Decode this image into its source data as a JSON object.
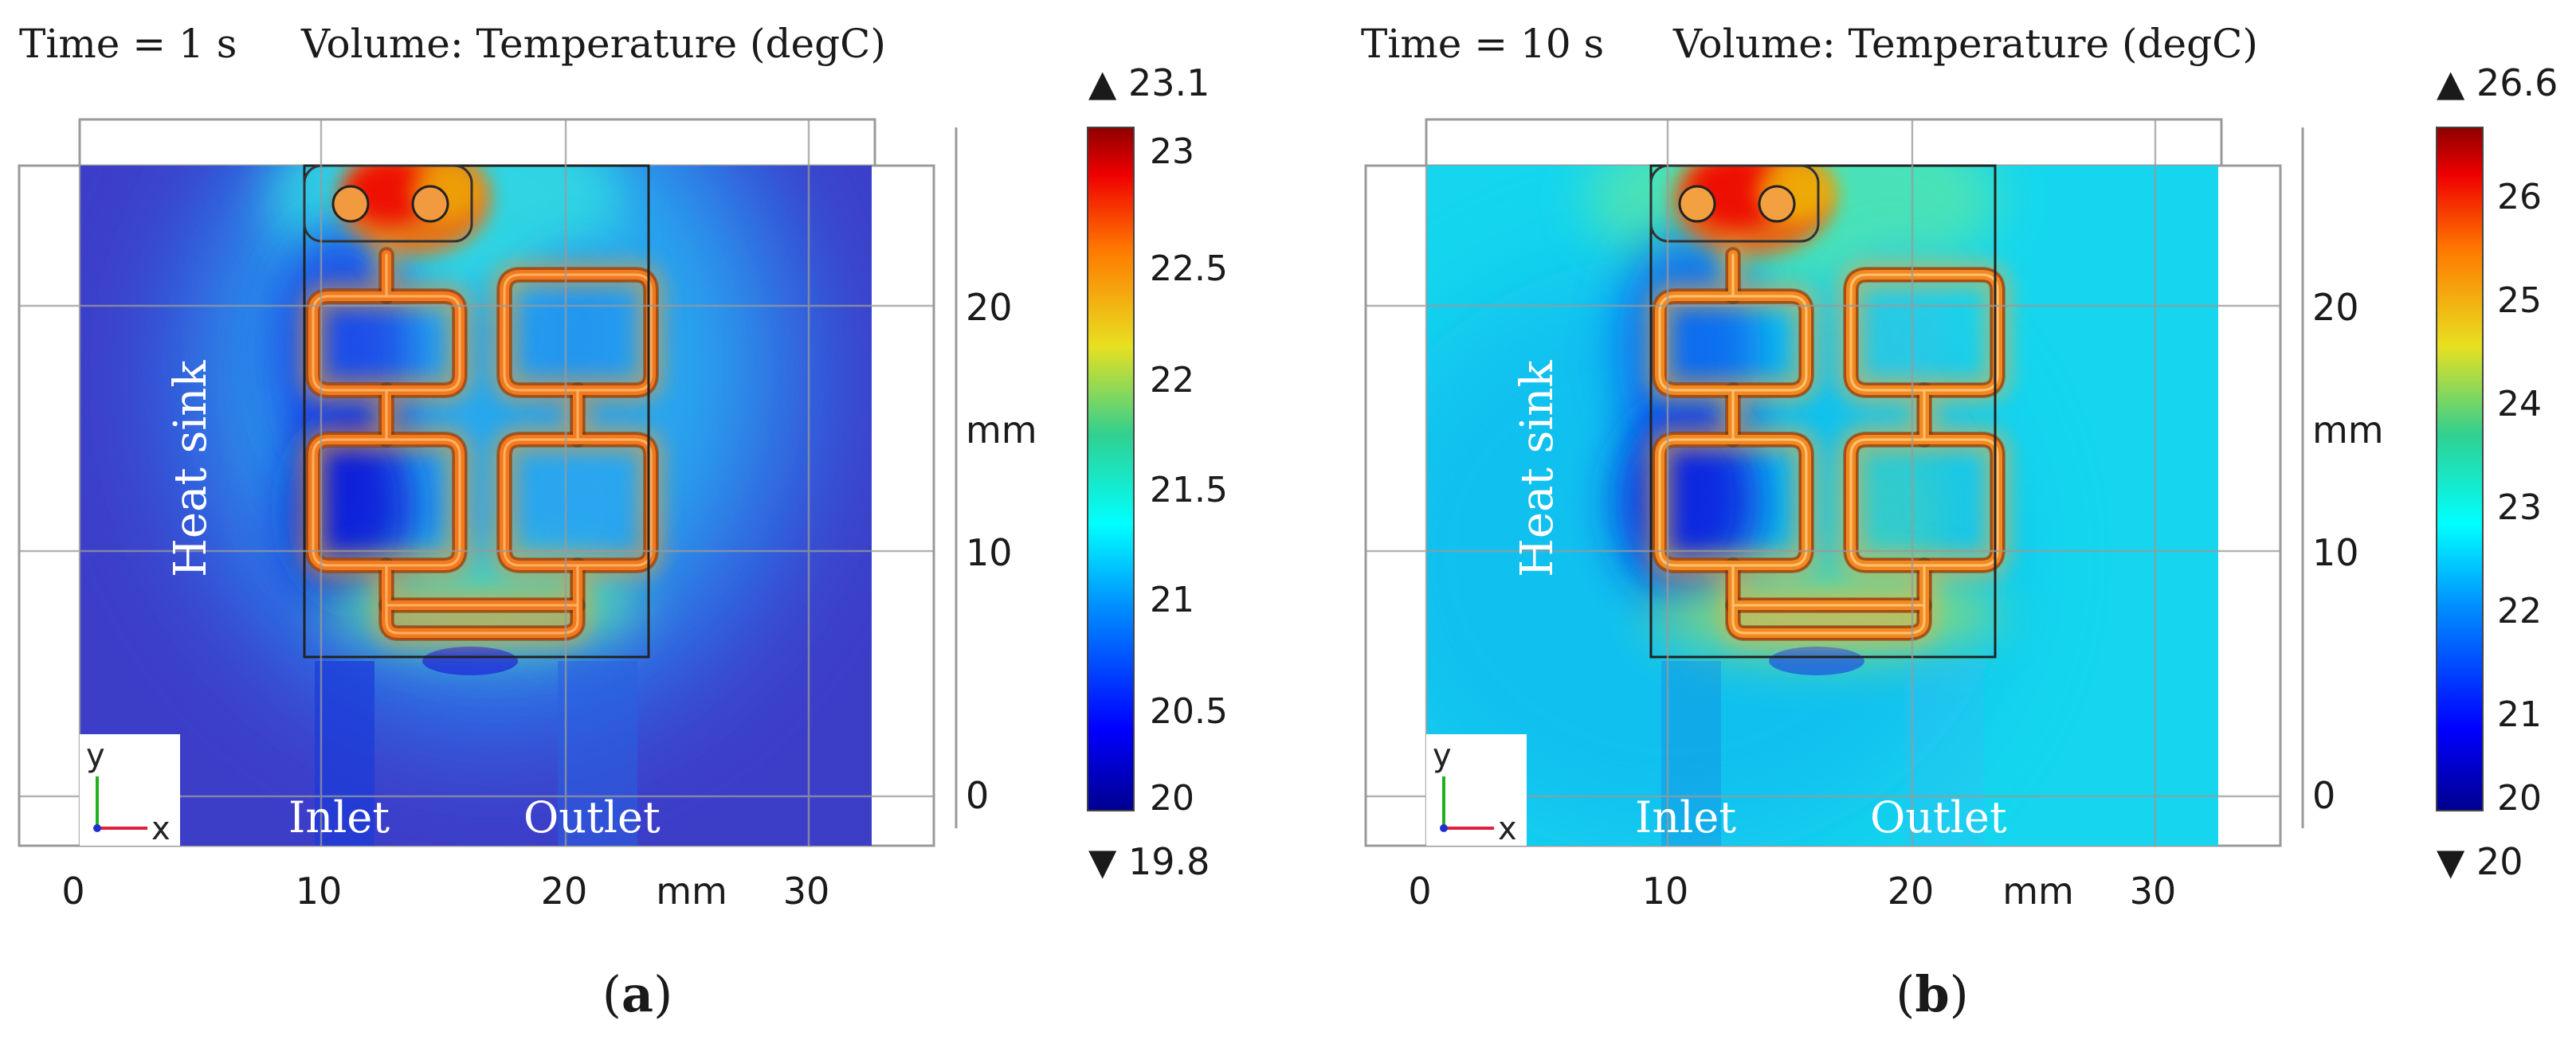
{
  "panels": [
    {
      "id": "a",
      "header_time": "Time = 1 s",
      "header_volume": "Volume: Temperature (degC)",
      "caption_letter": "a",
      "x_ticks": [
        "0",
        "10",
        "20",
        "mm",
        "30"
      ],
      "y_ticks": [
        "20",
        "mm",
        "10",
        "0"
      ],
      "labels": {
        "heat_sink": "Heat sink",
        "inlet": "Inlet",
        "outlet": "Outlet"
      },
      "colorbar": {
        "max_marker": "▲ 23.1",
        "min_marker": "▼ 19.8",
        "ticks": [
          "23",
          "22.5",
          "22",
          "21.5",
          "21",
          "20.5",
          "20"
        ],
        "max": 23.1,
        "min": 19.8
      },
      "axis": {
        "x": "x",
        "y": "y"
      },
      "background_color": "#3d3ec8"
    },
    {
      "id": "b",
      "header_time": "Time = 10 s",
      "header_volume": "Volume: Temperature (degC)",
      "caption_letter": "b",
      "x_ticks": [
        "0",
        "10",
        "20",
        "mm",
        "30"
      ],
      "y_ticks": [
        "20",
        "mm",
        "10",
        "0"
      ],
      "labels": {
        "heat_sink": "Heat sink",
        "inlet": "Inlet",
        "outlet": "Outlet"
      },
      "colorbar": {
        "max_marker": "▲ 26.6",
        "min_marker": "▼ 20",
        "ticks": [
          "26",
          "25",
          "24",
          "23",
          "22",
          "21",
          "20"
        ],
        "max": 26.6,
        "min": 20
      },
      "axis": {
        "x": "x",
        "y": "y"
      },
      "background_color": "#15d6ee"
    }
  ]
}
